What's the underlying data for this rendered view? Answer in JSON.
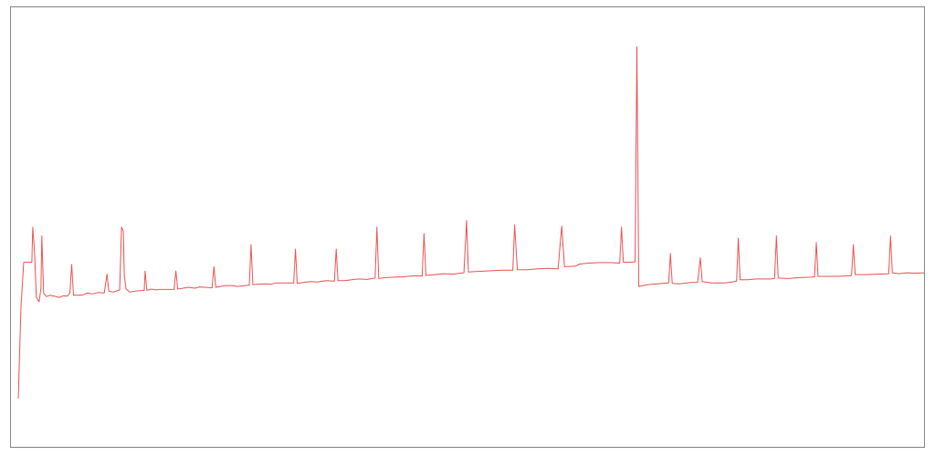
{
  "chart_data": {
    "type": "line",
    "title": "",
    "xlabel": "",
    "ylabel": "",
    "grid": false,
    "legend": "none",
    "xlim": [
      0,
      100
    ],
    "ylim": [
      0,
      100
    ],
    "series": [
      {
        "color": "#ee5555",
        "points": [
          [
            0,
            11
          ],
          [
            0.3,
            32
          ],
          [
            0.6,
            42
          ],
          [
            0.8,
            42
          ],
          [
            1.0,
            42
          ],
          [
            1.2,
            42
          ],
          [
            1.5,
            42
          ],
          [
            1.6,
            50
          ],
          [
            1.8,
            44
          ],
          [
            2.0,
            34
          ],
          [
            2.3,
            33
          ],
          [
            2.5,
            36
          ],
          [
            2.6,
            48
          ],
          [
            2.8,
            35
          ],
          [
            3.1,
            34.2
          ],
          [
            3.5,
            34.5
          ],
          [
            4.0,
            34.3
          ],
          [
            4.5,
            34
          ],
          [
            5.0,
            34.4
          ],
          [
            5.4,
            34.3
          ],
          [
            5.7,
            35
          ],
          [
            5.9,
            41.5
          ],
          [
            6.1,
            34.5
          ],
          [
            6.6,
            34.5
          ],
          [
            7.2,
            34.6
          ],
          [
            7.6,
            35
          ],
          [
            8.2,
            34.8
          ],
          [
            8.8,
            35.1
          ],
          [
            9.5,
            35
          ],
          [
            9.8,
            39.3
          ],
          [
            10.0,
            35.4
          ],
          [
            10.5,
            35.2
          ],
          [
            11.2,
            35.7
          ],
          [
            11.4,
            50
          ],
          [
            11.6,
            49
          ],
          [
            11.7,
            39
          ],
          [
            11.9,
            36
          ],
          [
            12.3,
            35.2
          ],
          [
            12.8,
            35.4
          ],
          [
            13.3,
            35.5
          ],
          [
            13.9,
            35.6
          ],
          [
            14.0,
            40
          ],
          [
            14.2,
            35.6
          ],
          [
            14.7,
            35.9
          ],
          [
            15.2,
            35.7
          ],
          [
            15.7,
            35.8
          ],
          [
            16.2,
            35.8
          ],
          [
            17.2,
            35.8
          ],
          [
            17.4,
            40
          ],
          [
            17.6,
            35.9
          ],
          [
            18.2,
            36.1
          ],
          [
            18.8,
            36.3
          ],
          [
            19.5,
            36.1
          ],
          [
            20.0,
            36.4
          ],
          [
            21.4,
            36.2
          ],
          [
            21.6,
            41
          ],
          [
            21.8,
            36.3
          ],
          [
            22.3,
            36.5
          ],
          [
            22.9,
            36.7
          ],
          [
            23.6,
            36.7
          ],
          [
            24.2,
            36.5
          ],
          [
            25.5,
            36.8
          ],
          [
            25.7,
            46
          ],
          [
            25.9,
            36.9
          ],
          [
            26.5,
            37
          ],
          [
            27.2,
            37.1
          ],
          [
            27.9,
            37
          ],
          [
            28.5,
            37.3
          ],
          [
            30.4,
            37.3
          ],
          [
            30.6,
            45
          ],
          [
            30.8,
            37.2
          ],
          [
            31.5,
            37.4
          ],
          [
            32.3,
            37.6
          ],
          [
            33.0,
            37.5
          ],
          [
            34.0,
            37.8
          ],
          [
            34.9,
            37.7
          ],
          [
            35.1,
            45
          ],
          [
            35.3,
            37.8
          ],
          [
            36.0,
            37.8
          ],
          [
            36.8,
            38
          ],
          [
            37.6,
            38.2
          ],
          [
            38.5,
            38.1
          ],
          [
            39.4,
            38.4
          ],
          [
            39.6,
            50
          ],
          [
            39.8,
            38.3
          ],
          [
            40.5,
            38.5
          ],
          [
            41.5,
            38.6
          ],
          [
            42.5,
            38.7
          ],
          [
            43.5,
            38.9
          ],
          [
            44.6,
            38.9
          ],
          [
            44.8,
            48.5
          ],
          [
            45.0,
            39
          ],
          [
            46.0,
            39.2
          ],
          [
            47.0,
            39.4
          ],
          [
            48.0,
            39.3
          ],
          [
            49.2,
            39.6
          ],
          [
            49.5,
            51.5
          ],
          [
            49.7,
            39.8
          ],
          [
            50.5,
            39.9
          ],
          [
            51.5,
            40
          ],
          [
            52.5,
            40.1
          ],
          [
            53.5,
            40.2
          ],
          [
            54.6,
            40.2
          ],
          [
            54.8,
            50.5
          ],
          [
            55.1,
            40.3
          ],
          [
            56.2,
            40.3
          ],
          [
            57.3,
            40.5
          ],
          [
            58.5,
            40.6
          ],
          [
            59.6,
            40.5
          ],
          [
            60.0,
            50.2
          ],
          [
            60.3,
            41
          ],
          [
            61.5,
            41.1
          ],
          [
            62.0,
            41.6
          ],
          [
            63.0,
            41.8
          ],
          [
            64.0,
            41.9
          ],
          [
            65.5,
            41.9
          ],
          [
            66.4,
            41.8
          ],
          [
            66.6,
            50
          ],
          [
            66.8,
            42
          ],
          [
            67.6,
            42
          ],
          [
            68.1,
            42.1
          ],
          [
            68.3,
            91
          ],
          [
            68.5,
            36.5
          ],
          [
            69.5,
            36.9
          ],
          [
            70.5,
            37.1
          ],
          [
            71.2,
            37.2
          ],
          [
            71.8,
            37.3
          ],
          [
            72.0,
            44
          ],
          [
            72.2,
            37.2
          ],
          [
            73.0,
            37.1
          ],
          [
            74.3,
            37.4
          ],
          [
            75.0,
            37.4
          ],
          [
            75.3,
            43
          ],
          [
            75.5,
            37.6
          ],
          [
            76.5,
            37.3
          ],
          [
            78.0,
            37.3
          ],
          [
            78.8,
            37.5
          ],
          [
            79.3,
            37.7
          ],
          [
            79.5,
            47.5
          ],
          [
            79.7,
            38
          ],
          [
            80.5,
            38
          ],
          [
            81.5,
            38.2
          ],
          [
            83.0,
            38.2
          ],
          [
            83.5,
            38.3
          ],
          [
            83.7,
            48
          ],
          [
            83.9,
            38.4
          ],
          [
            85.0,
            38.3
          ],
          [
            86.2,
            38.5
          ],
          [
            87.5,
            38.6
          ],
          [
            87.9,
            38.7
          ],
          [
            88.1,
            46.5
          ],
          [
            88.3,
            38.8
          ],
          [
            89.3,
            38.8
          ],
          [
            90.5,
            38.8
          ],
          [
            91.5,
            38.9
          ],
          [
            92.0,
            39
          ],
          [
            92.2,
            46
          ],
          [
            92.4,
            39.2
          ],
          [
            93.5,
            39.2
          ],
          [
            95.0,
            39.3
          ],
          [
            96.1,
            39.4
          ],
          [
            96.3,
            48
          ],
          [
            96.5,
            39.6
          ],
          [
            97.2,
            39.4
          ],
          [
            98.2,
            39.6
          ],
          [
            99.0,
            39.5
          ],
          [
            100,
            39.6
          ]
        ]
      }
    ]
  }
}
